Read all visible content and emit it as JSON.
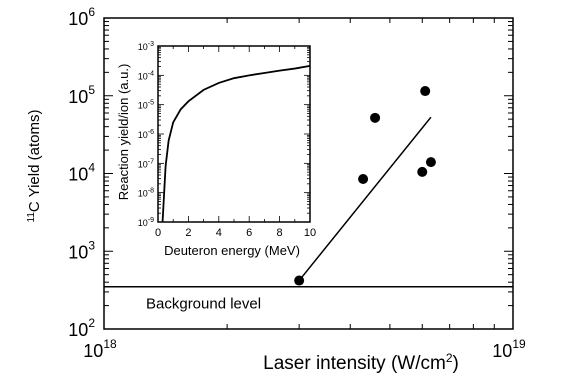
{
  "chart_data": [
    {
      "type": "scatter",
      "xlabel_main": "Laser intensity",
      "xlabel_unit_pre": "(W/cm",
      "xlabel_unit_sup": "2",
      "xlabel_unit_post": ")",
      "ylabel_sup": "11",
      "ylabel_main": "C Yield (atoms)",
      "x_scale": "log",
      "y_scale": "log",
      "xlim": [
        1e+18,
        1e+19
      ],
      "ylim": [
        100,
        1000000
      ],
      "x_ticks": [
        {
          "base": "10",
          "exp": "18",
          "value": 1e+18
        },
        {
          "base": "10",
          "exp": "19",
          "value": 1e+19
        }
      ],
      "y_ticks": [
        {
          "base": "10",
          "exp": "2",
          "value": 100
        },
        {
          "base": "10",
          "exp": "3",
          "value": 1000
        },
        {
          "base": "10",
          "exp": "4",
          "value": 10000
        },
        {
          "base": "10",
          "exp": "5",
          "value": 100000
        },
        {
          "base": "10",
          "exp": "6",
          "value": 1000000
        }
      ],
      "points": [
        {
          "x": 3e+18,
          "y": 420
        },
        {
          "x": 4.3e+18,
          "y": 8500
        },
        {
          "x": 4.6e+18,
          "y": 52000
        },
        {
          "x": 6e+18,
          "y": 10500
        },
        {
          "x": 6.1e+18,
          "y": 115000
        },
        {
          "x": 6.3e+18,
          "y": 14000
        }
      ],
      "fit_line": [
        {
          "x": 3e+18,
          "y": 420
        },
        {
          "x": 6.3e+18,
          "y": 53000
        }
      ],
      "background_level": {
        "y": 350,
        "label": "Background level"
      },
      "grid": false
    },
    {
      "type": "line",
      "xlabel": "Deuteron energy (MeV)",
      "ylabel": "Reaction yield/ion (a.u.)",
      "y_scale": "log",
      "xlim": [
        0,
        10
      ],
      "ylim": [
        1e-09,
        0.001
      ],
      "x_tick_labels": [
        "0",
        "2",
        "4",
        "6",
        "8",
        "10"
      ],
      "x_tick_values": [
        0,
        2,
        4,
        6,
        8,
        10
      ],
      "y_ticks": [
        {
          "base": "10",
          "exp": "-3",
          "value": 0.001
        },
        {
          "base": "10",
          "exp": "-4",
          "value": 0.0001
        },
        {
          "base": "10",
          "exp": "-5",
          "value": 1e-05
        },
        {
          "base": "10",
          "exp": "-6",
          "value": 1e-06
        },
        {
          "base": "10",
          "exp": "-7",
          "value": 1e-07
        },
        {
          "base": "10",
          "exp": "-8",
          "value": 1e-08
        },
        {
          "base": "10",
          "exp": "-9",
          "value": 1e-09
        }
      ],
      "series": [
        {
          "x": [
            0.3,
            0.5,
            0.7,
            1.0,
            1.5,
            2.0,
            3.0,
            4.0,
            5.0,
            6.0,
            7.0,
            8.0,
            9.0,
            10.0
          ],
          "y": [
            1e-09,
            8e-08,
            6e-07,
            2.5e-06,
            7e-06,
            1.3e-05,
            3.2e-05,
            5.5e-05,
            8e-05,
            0.0001,
            0.00012,
            0.000145,
            0.00017,
            0.00021
          ]
        }
      ],
      "grid": false
    }
  ]
}
